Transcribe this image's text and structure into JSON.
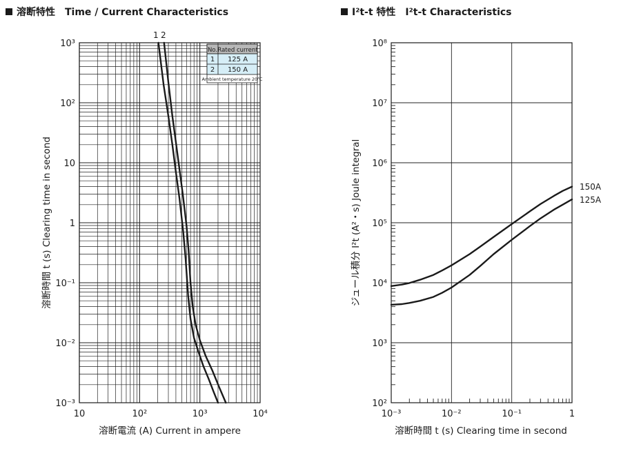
{
  "chart_data": [
    {
      "type": "line",
      "title": "溶断特性　Time / Current Characteristics",
      "xlabel": "溶断電流 (A)  Current in ampere",
      "ylabel": "溶断時間 t (s)  Clearing time in second",
      "xscale": "log",
      "yscale": "log",
      "xlim": [
        10,
        10000
      ],
      "ylim": [
        0.001,
        1000
      ],
      "x_tick_labels": [
        "10",
        "10²",
        "10³",
        "10⁴"
      ],
      "y_tick_labels": [
        "10⁻³",
        "10⁻²",
        "10⁻¹",
        "1",
        "10",
        "10²",
        "10³"
      ],
      "grid": true,
      "curve_labels": [
        "1",
        "2"
      ],
      "legend_table": {
        "headers": [
          "No.",
          "Rated current"
        ],
        "rows": [
          [
            "1",
            "125 A"
          ],
          [
            "2",
            "150 A"
          ]
        ],
        "note": "Ambient temperature 20℃",
        "placement": "top-right"
      },
      "series": [
        {
          "name": "125 A",
          "x": [
            205,
            250,
            300,
            350,
            400,
            460,
            530,
            580,
            640,
            700,
            800,
            950,
            1150,
            1400,
            1700,
            2000
          ],
          "y": [
            1000,
            200,
            60,
            20,
            7,
            2.5,
            0.7,
            0.25,
            0.06,
            0.025,
            0.012,
            0.007,
            0.004,
            0.0025,
            0.0015,
            0.001
          ]
        },
        {
          "name": "150 A",
          "x": [
            255,
            300,
            350,
            400,
            450,
            520,
            600,
            650,
            700,
            760,
            850,
            1000,
            1250,
            1600,
            2100,
            2700
          ],
          "y": [
            1000,
            220,
            60,
            22,
            9,
            3,
            0.9,
            0.35,
            0.1,
            0.04,
            0.02,
            0.011,
            0.006,
            0.0035,
            0.0018,
            0.001
          ]
        }
      ]
    },
    {
      "type": "line",
      "title": "I²t-t 特性　I²t-t Characteristics",
      "xlabel": "溶断時間 t (s)  Clearing time in second",
      "ylabel": "ジュール積分 I²t (A²・s) Joule integral",
      "xscale": "log",
      "yscale": "log",
      "xlim": [
        0.001,
        1
      ],
      "ylim": [
        100,
        100000000
      ],
      "x_tick_labels": [
        "10⁻³",
        "10⁻²",
        "10⁻¹",
        "1"
      ],
      "y_tick_labels": [
        "10²",
        "10³",
        "10⁴",
        "10⁵",
        "10⁶",
        "10⁷",
        "10⁸"
      ],
      "grid": true,
      "series": [
        {
          "name": "150A",
          "x": [
            0.001,
            0.0015,
            0.002,
            0.003,
            0.005,
            0.007,
            0.01,
            0.02,
            0.03,
            0.05,
            0.1,
            0.2,
            0.3,
            0.5,
            0.7,
            1
          ],
          "y": [
            8800,
            9300,
            9900,
            11200,
            13500,
            16000,
            19500,
            30000,
            40000,
            58000,
            95000,
            155000,
            205000,
            280000,
            340000,
            400000
          ]
        },
        {
          "name": "125A",
          "x": [
            0.001,
            0.0015,
            0.002,
            0.003,
            0.005,
            0.007,
            0.01,
            0.02,
            0.03,
            0.05,
            0.1,
            0.2,
            0.3,
            0.5,
            0.7,
            1
          ],
          "y": [
            4300,
            4400,
            4600,
            5000,
            5800,
            6800,
            8300,
            13500,
            19000,
            30000,
            52000,
            88000,
            118000,
            165000,
            200000,
            245000
          ]
        }
      ]
    }
  ]
}
